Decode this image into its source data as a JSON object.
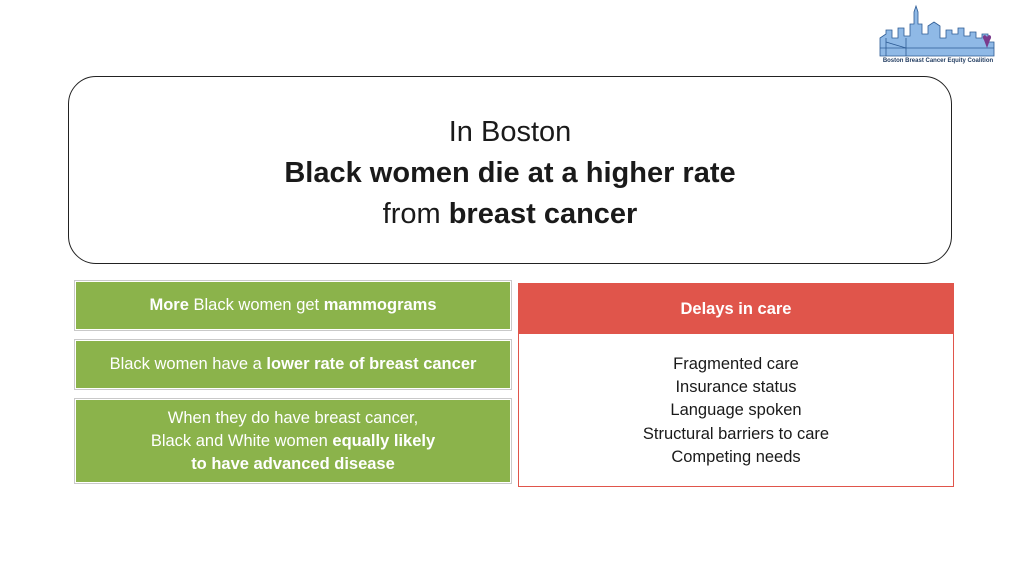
{
  "logo": {
    "caption": "Boston Breast Cancer Equity Coalition"
  },
  "headline": {
    "line1": "In Boston",
    "line2": "Black women die at a higher rate",
    "line3_prefix": "from ",
    "line3_bold": "breast cancer"
  },
  "green_boxes": [
    {
      "bold1": "More",
      "text1": " Black women get ",
      "bold2": "mammograms"
    },
    {
      "text1": "Black women have a ",
      "bold1": "lower rate of breast cancer"
    },
    {
      "line1": "When they do have breast cancer,",
      "line2_text": "Black and White women ",
      "line2_bold": "equally likely",
      "line3_bold": "to have advanced disease"
    }
  ],
  "delays": {
    "title": "Delays in care",
    "items": [
      "Fragmented care",
      "Insurance status",
      "Language spoken",
      "Structural barriers to care",
      "Competing needs"
    ]
  },
  "colors": {
    "green": "#8bb34b",
    "red": "#e0554b",
    "logo_blue": "#8fb9e6"
  }
}
